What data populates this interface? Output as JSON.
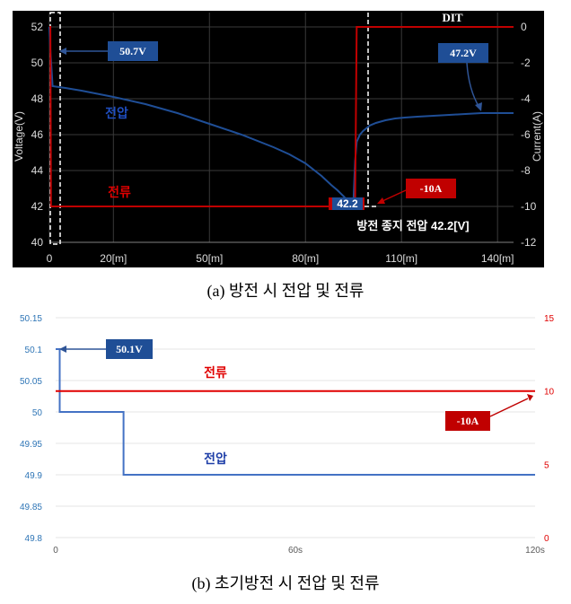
{
  "chart_data": [
    {
      "type": "line",
      "caption": "(a) 방전 시 전압 및 전류",
      "xlabel": "",
      "ylabel_left": "Voltage(V)",
      "ylabel_right": "Current(A)",
      "x_ticks": [
        "0",
        "20[m]",
        "50[m]",
        "80[m]",
        "110[m]",
        "140[m]"
      ],
      "y_left_ticks": [
        "40",
        "42",
        "44",
        "46",
        "48",
        "50",
        "52"
      ],
      "y_right_ticks": [
        "0",
        "-2",
        "-4",
        "-6",
        "-8",
        "-10",
        "-12"
      ],
      "ylim_left": [
        40,
        52
      ],
      "ylim_right": [
        -12,
        0
      ],
      "xlim": [
        0,
        145
      ],
      "grid": true,
      "series": [
        {
          "name": "전압",
          "axis": "left",
          "x": [
            0,
            0.3,
            1,
            5,
            10,
            20,
            30,
            40,
            50,
            60,
            70,
            75,
            80,
            85,
            88,
            90,
            92,
            93,
            94,
            95,
            95.5,
            96,
            97,
            98,
            99,
            100,
            102,
            105,
            108,
            111,
            115,
            120,
            125,
            130,
            135,
            140,
            145
          ],
          "y": [
            52,
            50.7,
            48.7,
            48.6,
            48.45,
            48.1,
            47.7,
            47.2,
            46.6,
            46.0,
            45.3,
            44.9,
            44.4,
            43.7,
            43.2,
            42.9,
            42.55,
            42.35,
            42.2,
            42.3,
            44.5,
            45.6,
            46.0,
            46.2,
            46.35,
            46.5,
            46.65,
            46.8,
            46.9,
            46.95,
            47.0,
            47.05,
            47.1,
            47.15,
            47.2,
            47.2,
            47.2
          ],
          "color": "#1f4e96"
        },
        {
          "name": "전류",
          "axis": "right",
          "x": [
            0,
            0.3,
            0.5,
            95,
            95.5,
            96,
            145
          ],
          "y": [
            0,
            0,
            -10,
            -10,
            -10,
            0,
            0
          ],
          "color": "#c00000"
        }
      ],
      "annotations": {
        "label_51": "50.7V",
        "label_47": "47.2V",
        "label_10a": "-10A",
        "label_42": "42.2",
        "label_dit": "DIT",
        "label_stop": "방전 종지 전압 42.2[V]",
        "label_voltage": "전압",
        "label_current": "전류"
      }
    },
    {
      "type": "line",
      "caption": "(b) 초기방전 시 전압 및 전류",
      "xlabel": "",
      "x_ticks": [
        "0",
        "60s",
        "120s"
      ],
      "y_left_ticks": [
        "49.8",
        "49.85",
        "49.9",
        "49.95",
        "50",
        "50.05",
        "50.1",
        "50.15"
      ],
      "y_right_ticks": [
        "0",
        "5",
        "10",
        "15"
      ],
      "ylim_left": [
        49.8,
        50.15
      ],
      "ylim_right": [
        0,
        15
      ],
      "xlim": [
        0,
        120
      ],
      "grid": true,
      "series": [
        {
          "name": "전압",
          "axis": "left",
          "x": [
            0,
            1,
            1,
            17,
            17,
            120
          ],
          "y": [
            50.1,
            50.1,
            50.0,
            50.0,
            49.9,
            49.9
          ],
          "color": "#4472c4"
        },
        {
          "name": "전류",
          "axis": "right",
          "x": [
            0,
            120
          ],
          "y": [
            10,
            10
          ],
          "color": "#e00000"
        }
      ],
      "annotations": {
        "label_50v": "50.1V",
        "label_10a": "-10A",
        "label_voltage": "전압",
        "label_current": "전류"
      }
    }
  ]
}
